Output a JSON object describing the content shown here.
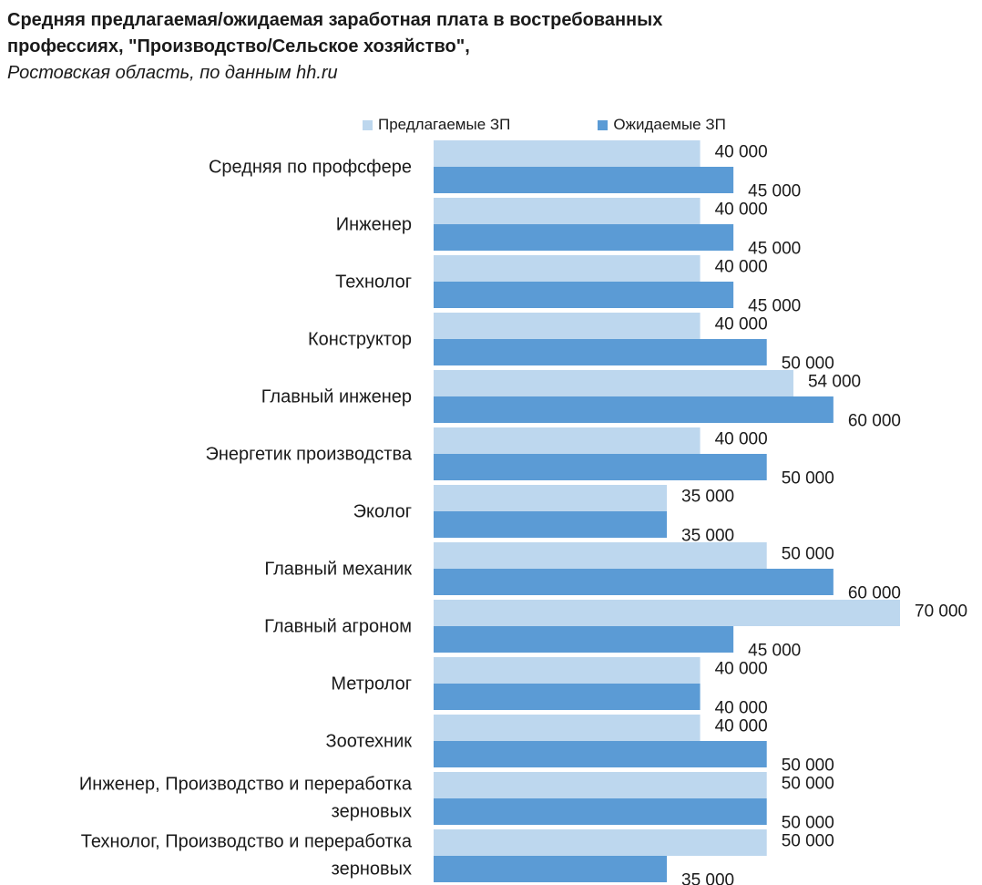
{
  "chart_data": {
    "type": "bar",
    "orientation": "horizontal",
    "title_lines": [
      "Средняя предлагаемая/ожидаемая заработная плата в востребованных",
      "профессиях, \"Производство/Сельское хозяйство\","
    ],
    "subtitle": "Ростовская область, по данным hh.ru",
    "xlabel": "",
    "ylabel": "",
    "xlim": [
      0,
      70000
    ],
    "grid": false,
    "legend_position": "top",
    "categories": [
      [
        "Средняя по профсфере"
      ],
      [
        "Инженер"
      ],
      [
        "Технолог"
      ],
      [
        "Конструктор"
      ],
      [
        "Главный инженер"
      ],
      [
        "Энергетик производства"
      ],
      [
        "Эколог"
      ],
      [
        "Главный механик"
      ],
      [
        "Главный агроном"
      ],
      [
        "Метролог"
      ],
      [
        "Зоотехник"
      ],
      [
        "Инженер, Производство и переработка",
        "зерновых"
      ],
      [
        "Технолог, Производство и переработка",
        "зерновых"
      ]
    ],
    "series": [
      {
        "name": "Предлагаемые ЗП",
        "color": "#bdd7ee",
        "values": [
          40000,
          40000,
          40000,
          40000,
          54000,
          40000,
          35000,
          50000,
          70000,
          40000,
          40000,
          50000,
          50000
        ],
        "labels": [
          "40 000",
          "40 000",
          "40 000",
          "40 000",
          "54 000",
          "40 000",
          "35 000",
          "50 000",
          "70 000",
          "40 000",
          "40 000",
          "50 000",
          "50 000"
        ]
      },
      {
        "name": "Ожидаемые ЗП",
        "color": "#5b9bd5",
        "values": [
          45000,
          45000,
          45000,
          50000,
          60000,
          50000,
          35000,
          60000,
          45000,
          40000,
          50000,
          50000,
          35000
        ],
        "labels": [
          "45 000",
          "45 000",
          "45 000",
          "50 000",
          "60 000",
          "50 000",
          "35 000",
          "60 000",
          "45 000",
          "40 000",
          "50 000",
          "50 000",
          "35 000"
        ]
      }
    ]
  }
}
